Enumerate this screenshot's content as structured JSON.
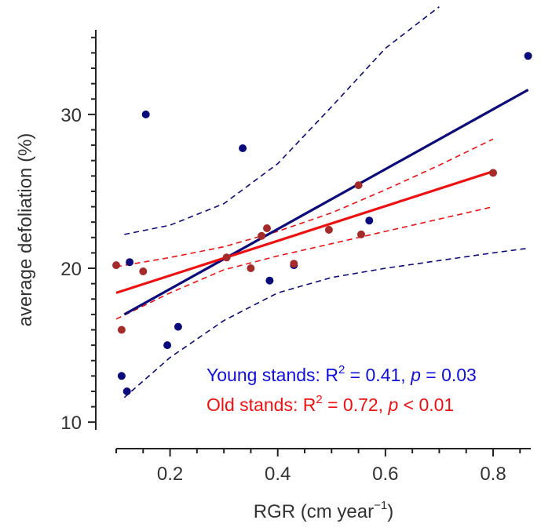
{
  "chart_data": {
    "type": "scatter",
    "title": "",
    "xlabel": "RGR (cm  year",
    "xlabel_sup": "−1",
    "xlabel_close": ")",
    "ylabel": "average defoliation (%)",
    "xlim": [
      0.1,
      0.87
    ],
    "ylim": [
      9.5,
      35.5
    ],
    "x_ticks": [
      0.2,
      0.4,
      0.6,
      0.8
    ],
    "x_tick_labels": [
      "0.2",
      "0.4",
      "0.6",
      "0.8"
    ],
    "y_ticks": [
      10,
      20,
      30
    ],
    "y_tick_labels": [
      "10",
      "20",
      "30"
    ],
    "grid": false,
    "series": [
      {
        "name": "Young stands",
        "color": "#0a0a7a",
        "points": [
          {
            "x": 0.11,
            "y": 13.0
          },
          {
            "x": 0.12,
            "y": 12.0
          },
          {
            "x": 0.125,
            "y": 20.4
          },
          {
            "x": 0.155,
            "y": 30.0
          },
          {
            "x": 0.195,
            "y": 15.0
          },
          {
            "x": 0.215,
            "y": 16.2
          },
          {
            "x": 0.335,
            "y": 27.8
          },
          {
            "x": 0.385,
            "y": 19.2
          },
          {
            "x": 0.43,
            "y": 20.2
          },
          {
            "x": 0.57,
            "y": 23.1
          },
          {
            "x": 0.865,
            "y": 33.8
          }
        ],
        "fit": [
          [
            0.115,
            17.0
          ],
          [
            0.865,
            31.6
          ]
        ],
        "ci_upper": [
          [
            0.115,
            22.2
          ],
          [
            0.2,
            22.8
          ],
          [
            0.3,
            24.2
          ],
          [
            0.4,
            26.8
          ],
          [
            0.5,
            30.5
          ],
          [
            0.6,
            34.3
          ],
          [
            0.7,
            37.0
          ]
        ],
        "ci_lower": [
          [
            0.115,
            11.6
          ],
          [
            0.2,
            14.2
          ],
          [
            0.3,
            16.6
          ],
          [
            0.4,
            18.4
          ],
          [
            0.5,
            19.4
          ],
          [
            0.6,
            20.0
          ],
          [
            0.7,
            20.5
          ],
          [
            0.8,
            21.0
          ],
          [
            0.865,
            21.3
          ]
        ]
      },
      {
        "name": "Old stands",
        "color": "#ee1111",
        "point_color": "#a52a2a",
        "points": [
          {
            "x": 0.1,
            "y": 20.2
          },
          {
            "x": 0.11,
            "y": 16.0
          },
          {
            "x": 0.15,
            "y": 19.8
          },
          {
            "x": 0.305,
            "y": 20.7
          },
          {
            "x": 0.35,
            "y": 20.0
          },
          {
            "x": 0.37,
            "y": 22.1
          },
          {
            "x": 0.38,
            "y": 22.6
          },
          {
            "x": 0.43,
            "y": 20.3
          },
          {
            "x": 0.495,
            "y": 22.5
          },
          {
            "x": 0.55,
            "y": 25.4
          },
          {
            "x": 0.555,
            "y": 22.2
          },
          {
            "x": 0.8,
            "y": 26.2
          }
        ],
        "fit": [
          [
            0.1,
            18.4
          ],
          [
            0.8,
            26.3
          ]
        ],
        "ci_upper": [
          [
            0.1,
            20.1
          ],
          [
            0.2,
            20.7
          ],
          [
            0.3,
            21.4
          ],
          [
            0.4,
            22.4
          ],
          [
            0.5,
            23.6
          ],
          [
            0.6,
            25.1
          ],
          [
            0.7,
            26.7
          ],
          [
            0.8,
            28.4
          ]
        ],
        "ci_lower": [
          [
            0.1,
            16.7
          ],
          [
            0.2,
            18.4
          ],
          [
            0.3,
            19.9
          ],
          [
            0.4,
            20.8
          ],
          [
            0.5,
            21.6
          ],
          [
            0.6,
            22.4
          ],
          [
            0.7,
            23.2
          ],
          [
            0.8,
            24.0
          ]
        ]
      }
    ],
    "annotations": [
      {
        "pre": "Young stands: R",
        "sup": "2",
        "mid": " = 0.41, ",
        "p": "p",
        "post": " = 0.03",
        "color": "#1010dd"
      },
      {
        "pre": "Old stands: R",
        "sup": "2",
        "mid": " = 0.72, ",
        "p": "p",
        "post": " < 0.01",
        "color": "#ee1111"
      }
    ]
  }
}
